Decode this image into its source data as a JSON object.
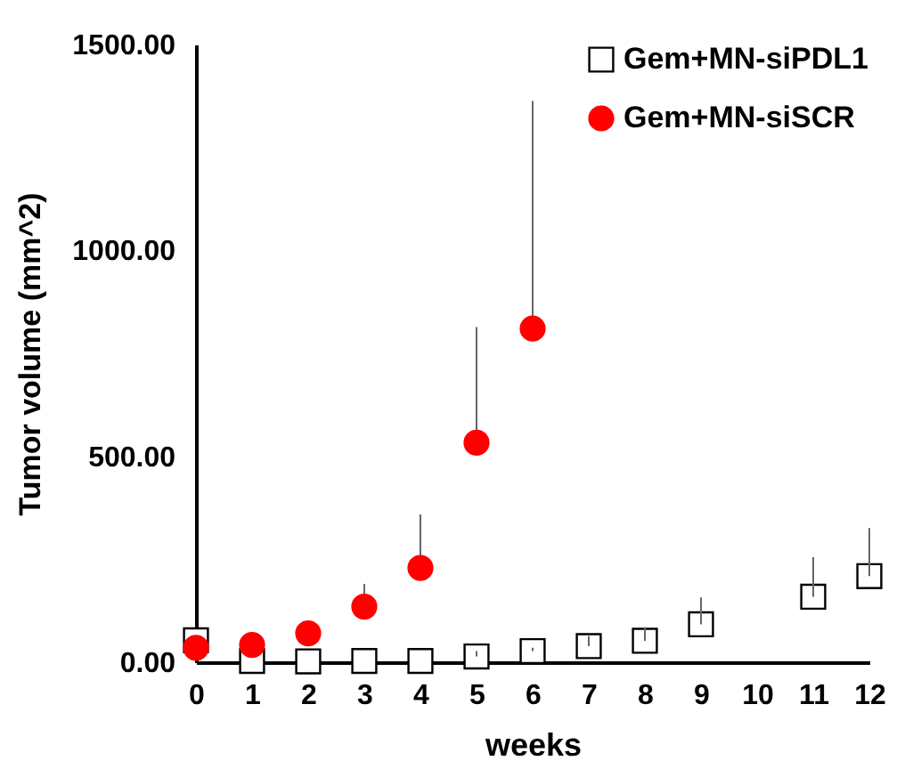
{
  "chart_data": {
    "type": "scatter",
    "xlabel": "weeks",
    "ylabel": "Tumor volume (mm^2)",
    "xlim": [
      0,
      12
    ],
    "xticks": [
      0,
      1,
      2,
      3,
      4,
      5,
      6,
      7,
      8,
      9,
      10,
      11,
      12
    ],
    "ylim": [
      0,
      1500
    ],
    "yticks": [
      {
        "value": 0,
        "label": "0.00"
      },
      {
        "value": 500,
        "label": "500.00"
      },
      {
        "value": 1000,
        "label": "1000.00"
      },
      {
        "value": 1500,
        "label": "1500.00"
      }
    ],
    "grid": false,
    "legend": "top right",
    "series": [
      {
        "name": "Gem+MN-siPDL1",
        "color": "#000000",
        "marker": "square",
        "x": [
          0,
          1,
          2,
          3,
          4,
          5,
          6,
          7,
          8,
          9,
          11,
          12
        ],
        "values": [
          53,
          3,
          2,
          3,
          3,
          14,
          27,
          39,
          52,
          92,
          159,
          209
        ],
        "errors": [
          null,
          null,
          null,
          null,
          null,
          [
            14,
            27
          ],
          [
            27,
            35
          ],
          [
            39,
            63
          ],
          [
            52,
            85
          ],
          [
            92,
            157
          ],
          [
            159,
            255
          ],
          [
            209,
            326
          ]
        ]
      },
      {
        "name": "Gem+MN-siSCR",
        "color": "#ff0000",
        "marker": "circle",
        "x": [
          0,
          1,
          2,
          3,
          4,
          5,
          6
        ],
        "values": [
          35,
          42,
          70,
          135,
          229,
          533,
          810
        ],
        "errors": [
          null,
          null,
          null,
          [
            135,
            190
          ],
          [
            229,
            359
          ],
          [
            533,
            814
          ],
          [
            810,
            1363
          ]
        ]
      }
    ]
  }
}
